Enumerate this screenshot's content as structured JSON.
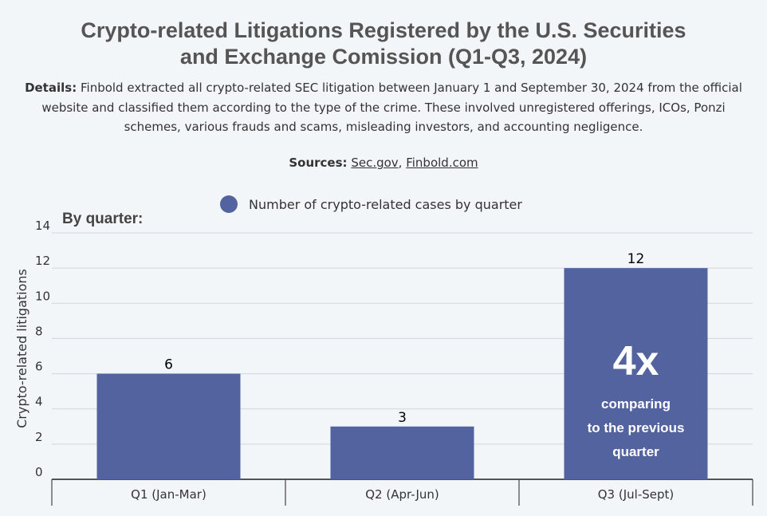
{
  "chart_data": {
    "type": "bar",
    "title": "Crypto-related Litigations Registered by the U.S. Securities and Exchange Comission (Q1-Q3, 2024)",
    "title_lines": [
      "Crypto-related Litigations Registered by the U.S. Securities",
      "and Exchange Comission (Q1-Q3, 2024)"
    ],
    "details_label": "Details:",
    "details_text": "Finbold extracted all crypto-related SEC litigation between January 1 and September 30, 2024 from the official website and classified them according to the type of the crime. These involved unregistered offerings, ICOs, Ponzi schemes, various frauds and scams, misleading investors, and accounting negligence.",
    "sources_label": "Sources:",
    "sources": [
      "Sec.gov",
      "Finbold.com"
    ],
    "subtitle": "By quarter:",
    "legend": [
      "Number of crypto-related cases by quarter"
    ],
    "categories": [
      "Q1 (Jan-Mar)",
      "Q2 (Apr-Jun)",
      "Q3 (Jul-Sept)"
    ],
    "values": [
      6,
      3,
      12
    ],
    "ylabel": "Crypto-related litigations",
    "xlabel": "",
    "ylim": [
      0,
      14
    ],
    "yticks": [
      0,
      2,
      4,
      6,
      8,
      10,
      12,
      14
    ],
    "grid": true,
    "bar_color": "#5263a0",
    "annotation": {
      "big": "4x",
      "lines": [
        "comparing",
        "to the previous",
        "quarter"
      ]
    }
  }
}
